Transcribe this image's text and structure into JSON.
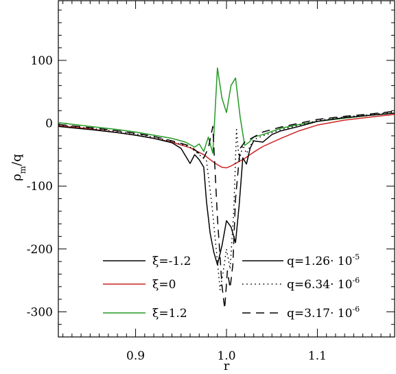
{
  "chart_data": {
    "type": "line",
    "xlabel": "r",
    "ylabel": {
      "main": "ρ",
      "sub": "m",
      "tail": "/q"
    },
    "xlim": [
      0.815,
      1.185
    ],
    "ylim": [
      -340,
      195
    ],
    "xticks": [
      0.9,
      1.0,
      1.1
    ],
    "xtick_labels": [
      "0.9",
      "1.0",
      "1.1"
    ],
    "yticks": [
      100,
      0,
      -100,
      -200,
      -300
    ],
    "ytick_labels": [
      "100",
      "0",
      "-100",
      "-200",
      "-300"
    ],
    "grid": false,
    "legend_position": "bottom",
    "legend_xi": [
      {
        "label": "ξ=-1.2",
        "color": "#000000"
      },
      {
        "label": "ξ=0",
        "color": "#cc2222"
      },
      {
        "label": "ξ=1.2",
        "color": "#229922"
      }
    ],
    "legend_q": [
      {
        "label": "q=1.26· 10",
        "exp": "-5",
        "dash": "solid"
      },
      {
        "label": "q=6.34· 10",
        "exp": "-6",
        "dash": "dotted"
      },
      {
        "label": "q=3.17· 10",
        "exp": "-6",
        "dash": "dashed"
      }
    ],
    "series": [
      {
        "color": "#cc2222",
        "dash": "solid",
        "x": [
          0.815,
          0.85,
          0.88,
          0.9,
          0.92,
          0.94,
          0.96,
          0.975,
          0.985,
          0.99,
          0.995,
          1.0,
          1.005,
          1.01,
          1.02,
          1.03,
          1.04,
          1.06,
          1.08,
          1.1,
          1.13,
          1.16,
          1.185
        ],
        "y": [
          -4,
          -9,
          -15,
          -19,
          -24,
          -30,
          -39,
          -50,
          -61,
          -66,
          -70,
          -71,
          -68,
          -64,
          -56,
          -46,
          -37,
          -24,
          -12,
          -3,
          5,
          10,
          14
        ]
      },
      {
        "color": "#229922",
        "dash": "solid",
        "x": [
          0.815,
          0.85,
          0.88,
          0.9,
          0.92,
          0.94,
          0.955,
          0.965,
          0.97,
          0.975,
          0.98,
          0.985,
          0.99,
          0.995,
          1.0,
          1.005,
          1.01,
          1.015,
          1.02,
          1.025,
          1.03,
          1.04,
          1.06,
          1.08,
          1.1,
          1.13,
          1.16,
          1.185
        ],
        "y": [
          1,
          -5,
          -10,
          -14,
          -19,
          -24,
          -30,
          -38,
          -33,
          -45,
          -22,
          -48,
          88,
          40,
          17,
          60,
          72,
          10,
          -35,
          -30,
          -22,
          -18,
          -8,
          -2,
          3,
          8,
          13,
          16
        ]
      },
      {
        "color": "#000000",
        "dash": "solid",
        "x": [
          0.815,
          0.85,
          0.88,
          0.9,
          0.92,
          0.94,
          0.95,
          0.96,
          0.965,
          0.97,
          0.975,
          0.978,
          0.982,
          0.986,
          0.99,
          0.995,
          1.0,
          1.005,
          1.01,
          1.014,
          1.018,
          1.022,
          1.026,
          1.03,
          1.04,
          1.05,
          1.06,
          1.08,
          1.1,
          1.13,
          1.16,
          1.185
        ],
        "y": [
          -5,
          -10,
          -15,
          -19,
          -24,
          -31,
          -40,
          -64,
          -50,
          -58,
          -70,
          -125,
          -175,
          -205,
          -225,
          -195,
          -155,
          -165,
          -190,
          -130,
          -55,
          -65,
          -40,
          -28,
          -30,
          -18,
          -12,
          -5,
          3,
          9,
          13,
          16
        ]
      },
      {
        "color": "#000000",
        "dash": "dotted",
        "x": [
          0.815,
          0.85,
          0.88,
          0.9,
          0.92,
          0.94,
          0.96,
          0.97,
          0.978,
          0.984,
          0.99,
          0.993,
          0.996,
          1.0,
          1.004,
          1.008,
          1.011,
          1.014,
          1.018,
          1.022,
          1.03,
          1.04,
          1.06,
          1.08,
          1.1,
          1.13,
          1.16,
          1.185
        ],
        "y": [
          -3,
          -8,
          -13,
          -17,
          -22,
          -29,
          -38,
          -50,
          -60,
          -130,
          -220,
          -265,
          -240,
          -200,
          -232,
          -140,
          -10,
          -60,
          -35,
          -48,
          -26,
          -20,
          -10,
          -3,
          4,
          10,
          14,
          18
        ]
      },
      {
        "color": "#000000",
        "dash": "dashed",
        "x": [
          0.815,
          0.85,
          0.88,
          0.9,
          0.92,
          0.94,
          0.96,
          0.97,
          0.975,
          0.98,
          0.985,
          0.99,
          0.995,
          0.998,
          1.001,
          1.004,
          1.007,
          1.01,
          1.015,
          1.02,
          1.03,
          1.04,
          1.06,
          1.08,
          1.1,
          1.13,
          1.16,
          1.185
        ],
        "y": [
          -2,
          -7,
          -12,
          -16,
          -21,
          -28,
          -36,
          -48,
          -55,
          -40,
          -5,
          -150,
          -258,
          -295,
          -235,
          -262,
          -225,
          -120,
          -40,
          -30,
          -22,
          -14,
          -6,
          0,
          6,
          11,
          15,
          19
        ]
      }
    ]
  }
}
